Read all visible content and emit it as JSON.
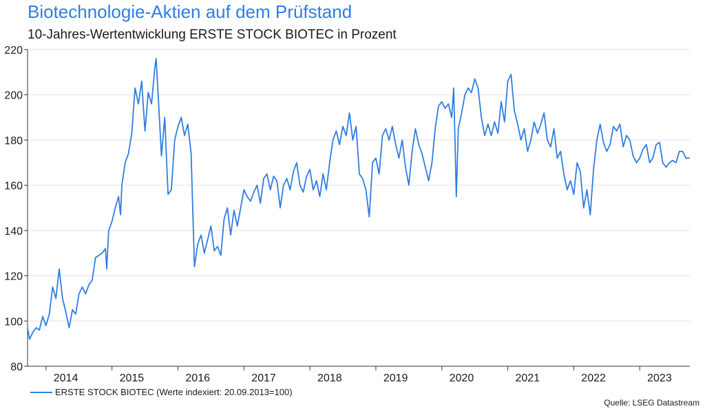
{
  "chart_data": {
    "type": "line",
    "title": "Biotechnologie-Aktien auf dem Prüfstand",
    "subtitle": "10-Jahres-Wertentwicklung ERSTE STOCK BIOTEC in Prozent",
    "xlabel": "",
    "ylabel": "",
    "ylim": [
      80,
      220
    ],
    "yticks": [
      "80",
      "100",
      "120",
      "140",
      "160",
      "180",
      "200",
      "220"
    ],
    "xlim": [
      2013.72,
      2023.76
    ],
    "xticks": [
      {
        "label": "2014",
        "x": 2014.3
      },
      {
        "label": "2015",
        "x": 2015.3
      },
      {
        "label": "2016",
        "x": 2016.3
      },
      {
        "label": "2017",
        "x": 2017.3
      },
      {
        "label": "2018",
        "x": 2018.3
      },
      {
        "label": "2019",
        "x": 2019.3
      },
      {
        "label": "2020",
        "x": 2020.3
      },
      {
        "label": "2021",
        "x": 2021.3
      },
      {
        "label": "2022",
        "x": 2022.3
      },
      {
        "label": "2023",
        "x": 2023.3
      }
    ],
    "grid": true,
    "series": [
      {
        "name": "ERSTE STOCK BIOTEC (Werte indexiert: 20.09.2013=100)",
        "color": "#2f7de1",
        "points": [
          [
            2013.72,
            97
          ],
          [
            2013.75,
            92
          ],
          [
            2013.8,
            95
          ],
          [
            2013.85,
            97
          ],
          [
            2013.9,
            96
          ],
          [
            2013.95,
            102
          ],
          [
            2014.0,
            98
          ],
          [
            2014.05,
            103
          ],
          [
            2014.1,
            115
          ],
          [
            2014.15,
            110
          ],
          [
            2014.2,
            123
          ],
          [
            2014.25,
            110
          ],
          [
            2014.3,
            104
          ],
          [
            2014.35,
            97
          ],
          [
            2014.4,
            105
          ],
          [
            2014.45,
            103
          ],
          [
            2014.5,
            112
          ],
          [
            2014.55,
            115
          ],
          [
            2014.6,
            112
          ],
          [
            2014.65,
            116
          ],
          [
            2014.7,
            118
          ],
          [
            2014.75,
            128
          ],
          [
            2014.8,
            129
          ],
          [
            2014.85,
            130
          ],
          [
            2014.9,
            132
          ],
          [
            2014.92,
            123
          ],
          [
            2014.95,
            140
          ],
          [
            2015.0,
            144
          ],
          [
            2015.05,
            150
          ],
          [
            2015.1,
            155
          ],
          [
            2015.13,
            147
          ],
          [
            2015.15,
            160
          ],
          [
            2015.2,
            170
          ],
          [
            2015.25,
            174
          ],
          [
            2015.3,
            183
          ],
          [
            2015.35,
            203
          ],
          [
            2015.4,
            196
          ],
          [
            2015.45,
            206
          ],
          [
            2015.5,
            184
          ],
          [
            2015.55,
            201
          ],
          [
            2015.6,
            196
          ],
          [
            2015.65,
            212
          ],
          [
            2015.67,
            216
          ],
          [
            2015.7,
            200
          ],
          [
            2015.75,
            173
          ],
          [
            2015.8,
            190
          ],
          [
            2015.85,
            156
          ],
          [
            2015.9,
            158
          ],
          [
            2015.95,
            180
          ],
          [
            2016.0,
            186
          ],
          [
            2016.05,
            190
          ],
          [
            2016.1,
            182
          ],
          [
            2016.15,
            187
          ],
          [
            2016.2,
            174
          ],
          [
            2016.25,
            124
          ],
          [
            2016.3,
            134
          ],
          [
            2016.35,
            138
          ],
          [
            2016.4,
            130
          ],
          [
            2016.45,
            136
          ],
          [
            2016.5,
            142
          ],
          [
            2016.55,
            131
          ],
          [
            2016.6,
            133
          ],
          [
            2016.65,
            129
          ],
          [
            2016.7,
            145
          ],
          [
            2016.75,
            150
          ],
          [
            2016.8,
            138
          ],
          [
            2016.85,
            149
          ],
          [
            2016.9,
            142
          ],
          [
            2016.95,
            150
          ],
          [
            2017.0,
            158
          ],
          [
            2017.05,
            155
          ],
          [
            2017.1,
            153
          ],
          [
            2017.15,
            157
          ],
          [
            2017.2,
            160
          ],
          [
            2017.25,
            152
          ],
          [
            2017.3,
            163
          ],
          [
            2017.35,
            165
          ],
          [
            2017.4,
            158
          ],
          [
            2017.45,
            164
          ],
          [
            2017.5,
            162
          ],
          [
            2017.55,
            150
          ],
          [
            2017.6,
            160
          ],
          [
            2017.65,
            163
          ],
          [
            2017.7,
            158
          ],
          [
            2017.75,
            166
          ],
          [
            2017.8,
            170
          ],
          [
            2017.85,
            160
          ],
          [
            2017.9,
            157
          ],
          [
            2017.95,
            164
          ],
          [
            2018.0,
            167
          ],
          [
            2018.05,
            158
          ],
          [
            2018.1,
            162
          ],
          [
            2018.15,
            155
          ],
          [
            2018.2,
            165
          ],
          [
            2018.25,
            158
          ],
          [
            2018.3,
            170
          ],
          [
            2018.35,
            180
          ],
          [
            2018.4,
            184
          ],
          [
            2018.45,
            178
          ],
          [
            2018.5,
            186
          ],
          [
            2018.55,
            182
          ],
          [
            2018.6,
            192
          ],
          [
            2018.65,
            180
          ],
          [
            2018.7,
            186
          ],
          [
            2018.75,
            165
          ],
          [
            2018.8,
            163
          ],
          [
            2018.85,
            158
          ],
          [
            2018.9,
            146
          ],
          [
            2018.95,
            170
          ],
          [
            2019.0,
            172
          ],
          [
            2019.05,
            165
          ],
          [
            2019.1,
            182
          ],
          [
            2019.15,
            185
          ],
          [
            2019.2,
            180
          ],
          [
            2019.25,
            186
          ],
          [
            2019.3,
            178
          ],
          [
            2019.35,
            172
          ],
          [
            2019.4,
            180
          ],
          [
            2019.45,
            168
          ],
          [
            2019.5,
            160
          ],
          [
            2019.55,
            175
          ],
          [
            2019.6,
            185
          ],
          [
            2019.65,
            178
          ],
          [
            2019.7,
            174
          ],
          [
            2019.75,
            168
          ],
          [
            2019.8,
            162
          ],
          [
            2019.85,
            170
          ],
          [
            2019.9,
            185
          ],
          [
            2019.95,
            195
          ],
          [
            2020.0,
            197
          ],
          [
            2020.05,
            194
          ],
          [
            2020.1,
            196
          ],
          [
            2020.15,
            190
          ],
          [
            2020.18,
            203
          ],
          [
            2020.22,
            155
          ],
          [
            2020.25,
            185
          ],
          [
            2020.3,
            192
          ],
          [
            2020.35,
            200
          ],
          [
            2020.4,
            203
          ],
          [
            2020.45,
            201
          ],
          [
            2020.5,
            207
          ],
          [
            2020.55,
            203
          ],
          [
            2020.6,
            190
          ],
          [
            2020.65,
            182
          ],
          [
            2020.7,
            187
          ],
          [
            2020.75,
            182
          ],
          [
            2020.8,
            188
          ],
          [
            2020.85,
            183
          ],
          [
            2020.9,
            197
          ],
          [
            2020.95,
            188
          ],
          [
            2021.0,
            206
          ],
          [
            2021.05,
            209
          ],
          [
            2021.1,
            193
          ],
          [
            2021.15,
            187
          ],
          [
            2021.2,
            180
          ],
          [
            2021.25,
            185
          ],
          [
            2021.3,
            175
          ],
          [
            2021.35,
            180
          ],
          [
            2021.4,
            188
          ],
          [
            2021.45,
            183
          ],
          [
            2021.5,
            187
          ],
          [
            2021.55,
            192
          ],
          [
            2021.6,
            180
          ],
          [
            2021.65,
            177
          ],
          [
            2021.7,
            185
          ],
          [
            2021.75,
            172
          ],
          [
            2021.8,
            175
          ],
          [
            2021.85,
            165
          ],
          [
            2021.9,
            158
          ],
          [
            2021.95,
            162
          ],
          [
            2022.0,
            156
          ],
          [
            2022.05,
            170
          ],
          [
            2022.1,
            166
          ],
          [
            2022.15,
            150
          ],
          [
            2022.2,
            158
          ],
          [
            2022.25,
            147
          ],
          [
            2022.3,
            167
          ],
          [
            2022.35,
            180
          ],
          [
            2022.4,
            187
          ],
          [
            2022.45,
            179
          ],
          [
            2022.5,
            175
          ],
          [
            2022.55,
            178
          ],
          [
            2022.6,
            186
          ],
          [
            2022.65,
            184
          ],
          [
            2022.7,
            187
          ],
          [
            2022.75,
            177
          ],
          [
            2022.8,
            182
          ],
          [
            2022.85,
            180
          ],
          [
            2022.9,
            173
          ],
          [
            2022.95,
            170
          ],
          [
            2023.0,
            172
          ],
          [
            2023.05,
            176
          ],
          [
            2023.1,
            178
          ],
          [
            2023.15,
            170
          ],
          [
            2023.2,
            172
          ],
          [
            2023.25,
            178
          ],
          [
            2023.3,
            179
          ],
          [
            2023.35,
            170
          ],
          [
            2023.4,
            168
          ],
          [
            2023.45,
            170
          ],
          [
            2023.5,
            171
          ],
          [
            2023.55,
            170
          ],
          [
            2023.6,
            175
          ],
          [
            2023.65,
            175
          ],
          [
            2023.7,
            172
          ],
          [
            2023.75,
            172
          ]
        ]
      }
    ],
    "legend": "bottom-left",
    "source": "Quelle: LSEG Datastream"
  }
}
